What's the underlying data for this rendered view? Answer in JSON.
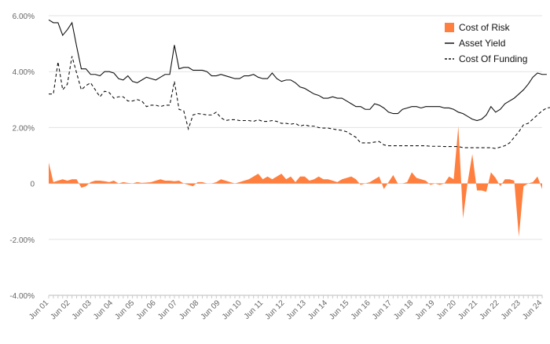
{
  "chart_data": {
    "type": "area",
    "title": "",
    "xlabel": "",
    "ylabel": "",
    "ylim": [
      -0.04,
      0.06
    ],
    "y_ticks": [
      {
        "value": 0.06,
        "label": "6.00%"
      },
      {
        "value": 0.04,
        "label": "4.00%"
      },
      {
        "value": 0.02,
        "label": "2.00%"
      },
      {
        "value": 0.0,
        "label": "0"
      },
      {
        "value": -0.02,
        "label": "-2.00%"
      },
      {
        "value": -0.04,
        "label": "-4.00%"
      }
    ],
    "x_tick_labels": [
      "Jun 01",
      "Jun 02",
      "Jun 03",
      "Jun 04",
      "Jun 05",
      "Jun 06",
      "Jun 07",
      "Jun 08",
      "Jun 09",
      "Jun 10",
      "Jun 11",
      "Jun 12",
      "Jun 13",
      "Jun 14",
      "Jun 15",
      "Jun 16",
      "Jun 17",
      "Jun 18",
      "Jun 19",
      "Jun 20",
      "Jun 21",
      "Jun 22",
      "Jun 23",
      "Jun 24"
    ],
    "x_start": 2001.5,
    "x_step": 0.25,
    "grid": {
      "horizontal": true,
      "vertical": false
    },
    "legend_position": "top-right",
    "series": [
      {
        "name": "Cost of Risk",
        "kind": "area",
        "color": "#ff7f3f",
        "values": [
          0.0075,
          0.0005,
          0.001,
          0.0015,
          0.001,
          0.0015,
          0.0015,
          -0.0015,
          -0.001,
          0.0005,
          0.001,
          0.001,
          0.0008,
          0.0005,
          0.001,
          0.0,
          0.0005,
          0.0002,
          0.0,
          0.0005,
          0.0002,
          0.0003,
          0.0005,
          0.001,
          0.0015,
          0.001,
          0.001,
          0.0008,
          0.001,
          0.0,
          -0.0005,
          -0.001,
          0.0005,
          0.0005,
          0.0,
          0.0,
          0.0005,
          0.0015,
          0.001,
          0.0005,
          0.0,
          0.0005,
          0.001,
          0.0015,
          0.0025,
          0.0035,
          0.0015,
          0.0025,
          0.0015,
          0.0025,
          0.0035,
          0.0015,
          0.0025,
          0.0005,
          0.0025,
          0.0025,
          0.001,
          0.0015,
          0.0025,
          0.0015,
          0.0015,
          0.001,
          0.0005,
          0.0015,
          0.002,
          0.0025,
          0.0015,
          -0.0005,
          0.0,
          0.0005,
          0.0015,
          0.0025,
          -0.002,
          0.0005,
          0.003,
          0.0,
          0.0,
          0.0005,
          0.004,
          0.002,
          0.0015,
          0.001,
          -0.0005,
          0.0,
          -0.0005,
          0.0,
          0.0025,
          0.0015,
          0.0205,
          -0.0125,
          0.0005,
          0.0105,
          -0.0025,
          -0.0025,
          -0.003,
          0.004,
          0.002,
          -0.001,
          0.0015,
          0.0015,
          0.001,
          -0.019,
          -0.001,
          0.0,
          0.0005,
          0.0025,
          -0.002
        ]
      },
      {
        "name": "Asset Yield",
        "kind": "line",
        "color": "#111111",
        "dash": "solid",
        "values": [
          0.0585,
          0.0575,
          0.0575,
          0.053,
          0.055,
          0.0575,
          0.049,
          0.041,
          0.041,
          0.039,
          0.039,
          0.0385,
          0.04,
          0.04,
          0.0395,
          0.0375,
          0.037,
          0.0385,
          0.0365,
          0.036,
          0.037,
          0.038,
          0.0375,
          0.037,
          0.038,
          0.039,
          0.039,
          0.0495,
          0.041,
          0.0415,
          0.0415,
          0.0405,
          0.0405,
          0.0405,
          0.04,
          0.0385,
          0.0385,
          0.039,
          0.0385,
          0.038,
          0.0375,
          0.0375,
          0.0385,
          0.0385,
          0.039,
          0.038,
          0.0375,
          0.0375,
          0.0395,
          0.0375,
          0.0365,
          0.037,
          0.037,
          0.036,
          0.0345,
          0.034,
          0.033,
          0.032,
          0.0315,
          0.0305,
          0.0305,
          0.031,
          0.0305,
          0.0305,
          0.0295,
          0.0285,
          0.0275,
          0.0275,
          0.0265,
          0.0265,
          0.0285,
          0.028,
          0.027,
          0.0255,
          0.025,
          0.025,
          0.0265,
          0.027,
          0.0275,
          0.0275,
          0.027,
          0.0275,
          0.0275,
          0.0275,
          0.0275,
          0.027,
          0.027,
          0.0265,
          0.0255,
          0.025,
          0.024,
          0.023,
          0.0225,
          0.023,
          0.0245,
          0.0275,
          0.0255,
          0.0265,
          0.0285,
          0.0295,
          0.0305,
          0.032,
          0.0335,
          0.0355,
          0.038,
          0.0395,
          0.039,
          0.039
        ]
      },
      {
        "name": "Cost Of Funding",
        "kind": "line",
        "color": "#111111",
        "dash": "dashed",
        "values": [
          0.032,
          0.032,
          0.0435,
          0.0335,
          0.0355,
          0.0455,
          0.0395,
          0.0335,
          0.035,
          0.036,
          0.0335,
          0.031,
          0.033,
          0.0325,
          0.0305,
          0.031,
          0.031,
          0.0295,
          0.0295,
          0.03,
          0.0295,
          0.0275,
          0.028,
          0.028,
          0.0275,
          0.028,
          0.028,
          0.0365,
          0.0265,
          0.026,
          0.0195,
          0.0245,
          0.025,
          0.0248,
          0.0245,
          0.0245,
          0.0255,
          0.0235,
          0.0225,
          0.0228,
          0.0228,
          0.0225,
          0.0225,
          0.0225,
          0.0222,
          0.0228,
          0.0222,
          0.0222,
          0.0225,
          0.0222,
          0.0215,
          0.0215,
          0.0212,
          0.0215,
          0.0205,
          0.021,
          0.0205,
          0.0205,
          0.02,
          0.0198,
          0.0198,
          0.0195,
          0.0192,
          0.019,
          0.0185,
          0.0175,
          0.0165,
          0.0145,
          0.0145,
          0.0145,
          0.0148,
          0.015,
          0.0138,
          0.0135,
          0.0135,
          0.0135,
          0.0135,
          0.0135,
          0.0135,
          0.0135,
          0.0135,
          0.0135,
          0.0133,
          0.0133,
          0.0133,
          0.0132,
          0.0132,
          0.0132,
          0.0132,
          0.0128,
          0.0128,
          0.0128,
          0.0128,
          0.0128,
          0.0128,
          0.0128,
          0.0125,
          0.013,
          0.0135,
          0.0145,
          0.0165,
          0.0185,
          0.021,
          0.0215,
          0.023,
          0.0245,
          0.026,
          0.027,
          0.0272
        ]
      }
    ]
  }
}
